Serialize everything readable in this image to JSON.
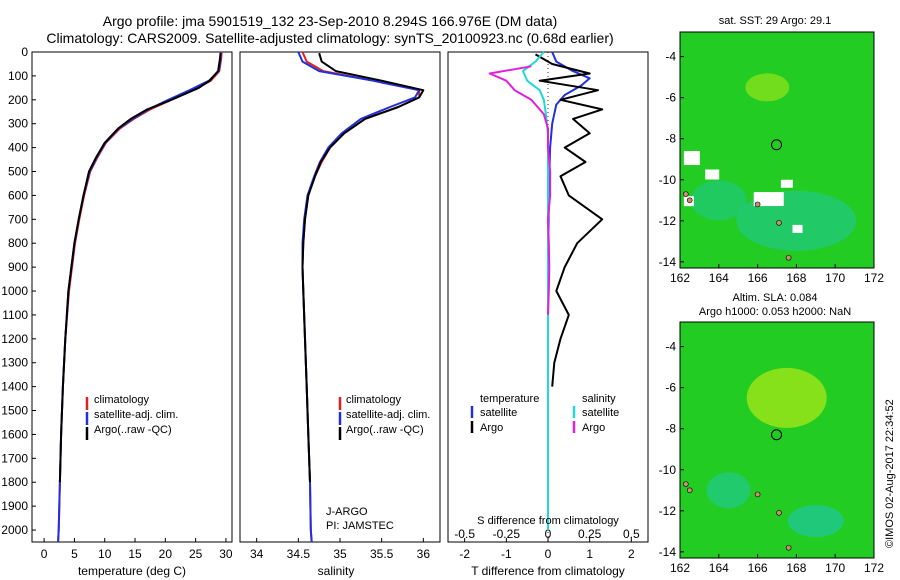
{
  "header": {
    "title_line1": "Argo profile: jma 5901519_132 23-Sep-2010 8.294S 166.976E (DM data)",
    "title_line2": "Climatology: CARS2009. Satellite-adjusted climatology: synTS_20100923.nc (0.68d earlier)"
  },
  "credit": "©IMOS 02-Aug-2017 22:34:52",
  "colors": {
    "climatology": "#e02020",
    "satellite": "#2030e0",
    "argo": "#000000",
    "sal_satellite": "#20d8d8",
    "sal_argo": "#e020e0",
    "map_bg": "#22cc22",
    "map_warm": "#a8e81a",
    "map_cool": "#20c8a0",
    "land": "#c8906a"
  },
  "chart_data": [
    {
      "id": "temperature",
      "type": "line",
      "xlabel": "temperature (deg C)",
      "ylabel": "",
      "xlim": [
        -2,
        31
      ],
      "ylim": [
        2050,
        0
      ],
      "xticks": [
        0,
        5,
        10,
        15,
        20,
        25,
        30
      ],
      "yticks": [
        0,
        100,
        200,
        300,
        400,
        500,
        600,
        700,
        800,
        900,
        1000,
        1100,
        1200,
        1300,
        1400,
        1500,
        1600,
        1700,
        1800,
        1900,
        2000
      ],
      "legend": {
        "position": "lower-right",
        "entries": [
          "climatology",
          "satellite-adj. clim.",
          "Argo(..raw -QC)"
        ]
      },
      "series": [
        {
          "name": "climatology",
          "color_key": "climatology",
          "x": [
            29.3,
            29.2,
            28.9,
            27.5,
            24.5,
            21,
            17.5,
            14.8,
            12.5,
            10.2,
            8.8,
            7.6,
            6.6,
            5.8,
            5.1,
            4.6,
            4.1,
            3.5,
            3.1,
            2.8,
            2.6,
            2.4,
            2.3
          ],
          "y": [
            0,
            30,
            80,
            120,
            160,
            200,
            240,
            280,
            320,
            380,
            440,
            500,
            600,
            700,
            800,
            900,
            1000,
            1200,
            1400,
            1600,
            1800,
            2000,
            2050
          ]
        },
        {
          "name": "satellite-adj. clim.",
          "color_key": "satellite",
          "x": [
            29.1,
            29.1,
            28.8,
            27.2,
            24.0,
            20.5,
            17.2,
            14.6,
            12.3,
            10.1,
            8.7,
            7.5,
            6.5,
            5.7,
            5.0,
            4.5,
            4.0,
            3.5,
            3.1,
            2.8,
            2.6,
            2.4,
            2.3
          ],
          "y": [
            0,
            30,
            80,
            120,
            160,
            200,
            240,
            280,
            320,
            380,
            440,
            500,
            600,
            700,
            800,
            900,
            1000,
            1200,
            1400,
            1600,
            1800,
            2000,
            2050
          ]
        },
        {
          "name": "Argo(..raw -QC)",
          "color_key": "argo",
          "x": [
            29.1,
            29.0,
            28.7,
            27.3,
            25.5,
            21.0,
            17.0,
            14.3,
            12.2,
            10.0,
            8.6,
            7.4,
            6.5,
            5.7,
            5.0,
            4.5,
            4.0,
            3.5,
            3.1,
            2.8,
            2.6
          ],
          "y": [
            5,
            30,
            80,
            120,
            150,
            200,
            240,
            280,
            320,
            380,
            440,
            500,
            600,
            700,
            800,
            900,
            1000,
            1200,
            1400,
            1600,
            1800
          ]
        }
      ]
    },
    {
      "id": "salinity",
      "type": "line",
      "xlabel": "salinity",
      "ylabel": "",
      "xlim": [
        33.8,
        36.2
      ],
      "ylim": [
        2050,
        0
      ],
      "xticks": [
        34,
        34.5,
        35,
        35.5,
        36
      ],
      "legend": {
        "position": "lower-right",
        "entries": [
          "climatology",
          "satellite-adj. clim.",
          "Argo(..raw -QC)"
        ]
      },
      "annotations": [
        "J-ARGO",
        "PI: JAMSTEC"
      ],
      "series": [
        {
          "name": "climatology",
          "color_key": "climatology",
          "x": [
            34.55,
            34.6,
            34.8,
            35.4,
            35.95,
            35.95,
            35.7,
            35.3,
            35.05,
            34.88,
            34.78,
            34.7,
            34.62,
            34.58,
            34.56,
            34.55,
            34.56,
            34.58,
            34.6,
            34.62,
            34.64,
            34.65,
            34.66
          ],
          "y": [
            0,
            40,
            80,
            120,
            160,
            190,
            230,
            280,
            340,
            400,
            460,
            520,
            600,
            700,
            800,
            900,
            1000,
            1200,
            1400,
            1600,
            1800,
            2000,
            2050
          ]
        },
        {
          "name": "satellite-adj. clim.",
          "color_key": "satellite",
          "x": [
            34.5,
            34.55,
            34.75,
            35.4,
            35.95,
            35.9,
            35.6,
            35.25,
            35.02,
            34.86,
            34.76,
            34.69,
            34.61,
            34.57,
            34.55,
            34.55,
            34.56,
            34.58,
            34.6,
            34.62,
            34.64,
            34.65,
            34.66
          ],
          "y": [
            0,
            40,
            80,
            120,
            160,
            190,
            230,
            280,
            340,
            400,
            460,
            520,
            600,
            700,
            800,
            900,
            1000,
            1200,
            1400,
            1600,
            1800,
            2000,
            2050
          ]
        },
        {
          "name": "Argo(..raw -QC)",
          "color_key": "argo",
          "x": [
            34.75,
            34.78,
            34.95,
            35.5,
            36.0,
            35.95,
            35.7,
            35.3,
            35.05,
            34.88,
            34.77,
            34.7,
            34.62,
            34.58,
            34.56,
            34.55,
            34.56,
            34.58,
            34.6,
            34.62,
            34.64
          ],
          "y": [
            5,
            40,
            80,
            120,
            160,
            190,
            230,
            280,
            340,
            400,
            460,
            520,
            600,
            700,
            800,
            900,
            1000,
            1200,
            1400,
            1600,
            1800
          ]
        }
      ]
    },
    {
      "id": "difference",
      "type": "line",
      "xlabel_bottom": "T difference from climatology",
      "xlabel_top": "S difference from climatology",
      "xlim": [
        -2.4,
        2.4
      ],
      "ylim": [
        2050,
        0
      ],
      "xticks_T": [
        -2,
        -1,
        0,
        1,
        2
      ],
      "xticks_S": [
        -0.5,
        -0.25,
        0,
        0.25,
        0.5
      ],
      "xticks_S_labels": [
        "-0.5",
        "-0.25",
        "0",
        "0.25",
        "0.5"
      ],
      "legend": {
        "position": "lower-center",
        "temperature_title": "temperature",
        "salinity_title": "salinity",
        "temperature_entries": [
          "satellite",
          "Argo"
        ],
        "salinity_entries": [
          "satellite",
          "Argo"
        ]
      },
      "series": [
        {
          "name": "temperature satellite",
          "color_key": "satellite",
          "x": [
            0.1,
            0.2,
            0.6,
            1.0,
            0.8,
            0.4,
            0.2,
            0.1,
            0.05,
            0.02,
            0.0,
            0.0
          ],
          "y": [
            0,
            40,
            80,
            110,
            140,
            180,
            220,
            300,
            400,
            600,
            1000,
            2000
          ]
        },
        {
          "name": "temperature Argo",
          "color_key": "argo",
          "x": [
            -0.3,
            0.1,
            1.0,
            -0.2,
            1.2,
            0.3,
            1.3,
            0.6,
            1.0,
            0.4,
            0.9,
            0.3,
            0.5,
            1.3,
            0.7,
            0.4,
            0.2,
            0.5,
            0.3,
            0.15,
            0.1
          ],
          "y": [
            10,
            50,
            90,
            120,
            160,
            200,
            240,
            280,
            340,
            400,
            460,
            520,
            600,
            700,
            800,
            900,
            1000,
            1100,
            1200,
            1300,
            1400
          ]
        },
        {
          "name": "salinity satellite",
          "color_key": "sal_satellite",
          "x": [
            -0.1,
            -0.3,
            -0.6,
            -0.5,
            -0.2,
            -0.1,
            -0.05,
            0.0,
            0.0,
            0.0,
            0.0,
            0.0
          ],
          "y": [
            0,
            40,
            80,
            120,
            160,
            200,
            260,
            350,
            500,
            800,
            1300,
            2000
          ]
        },
        {
          "name": "salinity Argo",
          "color_key": "sal_argo",
          "x": [
            -0.4,
            -1.4,
            -1.0,
            -0.8,
            -0.4,
            -0.1,
            0.0,
            0.0,
            0.05,
            0.05,
            0.0,
            0.02,
            0.03,
            0.02,
            0.0
          ],
          "y": [
            60,
            90,
            120,
            160,
            200,
            260,
            320,
            400,
            500,
            600,
            700,
            800,
            900,
            1000,
            1100
          ]
        }
      ]
    },
    {
      "id": "sst-map",
      "type": "heatmap",
      "title": "sat. SST: 29 Argo: 29.1",
      "xlim": [
        162,
        172
      ],
      "ylim": [
        -14.3,
        -2.8
      ],
      "xticks": [
        162,
        164,
        166,
        168,
        170,
        172
      ],
      "yticks": [
        -4,
        -6,
        -8,
        -10,
        -12,
        -14
      ],
      "argo_position": {
        "lon": 166.976,
        "lat": -8.294
      }
    },
    {
      "id": "sla-map",
      "type": "heatmap",
      "title_line1": "Altim. SLA: 0.084",
      "title_line2": "Argo h1000: 0.053 h2000: NaN",
      "xlim": [
        162,
        172
      ],
      "ylim": [
        -14.3,
        -2.8
      ],
      "xticks": [
        162,
        164,
        166,
        168,
        170,
        172
      ],
      "yticks": [
        -4,
        -6,
        -8,
        -10,
        -12,
        -14
      ],
      "argo_position": {
        "lon": 166.976,
        "lat": -8.294
      }
    }
  ]
}
